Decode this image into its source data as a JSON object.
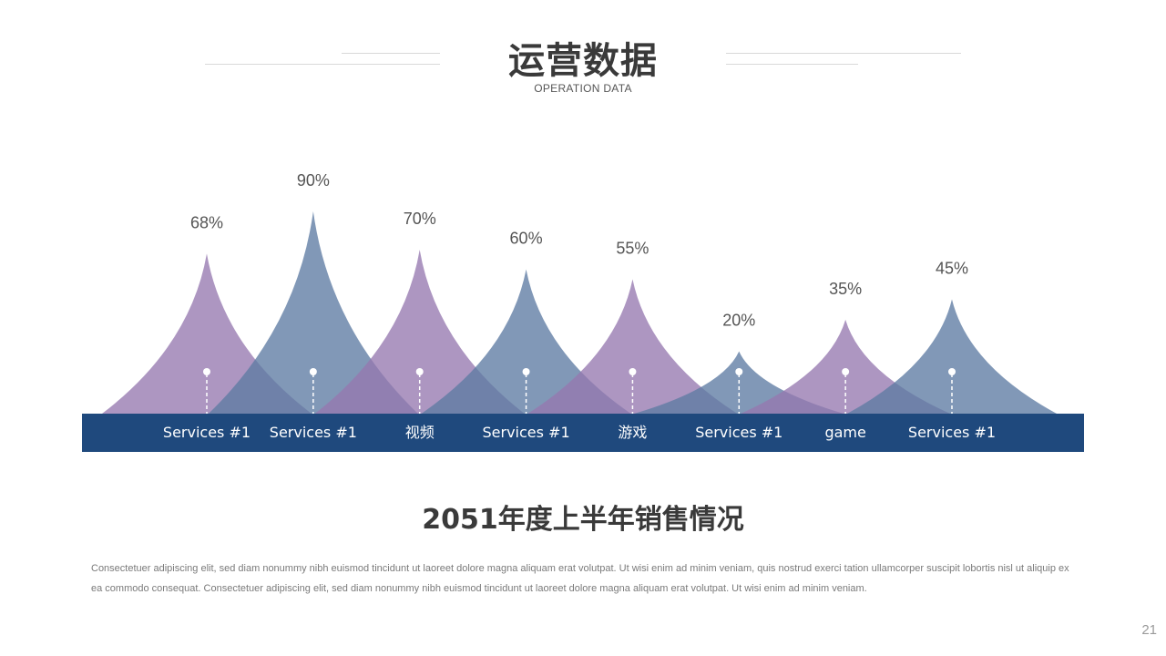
{
  "header": {
    "title": "运营数据",
    "subtitle": "OPERATION DATA"
  },
  "colors": {
    "purple": "#9679b0",
    "blue": "#5e7ba3",
    "band": "#1f497d",
    "text_dark": "#3a3a3a"
  },
  "chart_data": {
    "type": "area",
    "categories": [
      "Services #1",
      "Services #1",
      "视频",
      "Services #1",
      "游戏",
      "Services #1",
      "game",
      "Services #1"
    ],
    "values": [
      68,
      90,
      70,
      60,
      55,
      20,
      35,
      45
    ],
    "data_labels": [
      "68%",
      "90%",
      "70%",
      "60%",
      "55%",
      "20%",
      "35%",
      "45%"
    ],
    "series_colors": [
      "purple",
      "blue",
      "purple",
      "blue",
      "purple",
      "blue",
      "purple",
      "blue"
    ],
    "xlabel": "",
    "ylabel": "",
    "grid": false,
    "legend": "none"
  },
  "section": {
    "heading": "2051年度上半年销售情况",
    "body": "Consectetuer adipiscing elit, sed diam nonummy nibh euismod tincidunt ut laoreet dolore magna aliquam erat volutpat. Ut wisi enim ad minim veniam, quis nostrud exerci tation ullamcorper suscipit lobortis nisl ut aliquip ex ea commodo consequat. Consectetuer adipiscing elit, sed diam nonummy nibh euismod tincidunt ut laoreet dolore magna aliquam erat volutpat. Ut wisi enim ad minim veniam."
  },
  "footer": {
    "page_number": "21"
  }
}
